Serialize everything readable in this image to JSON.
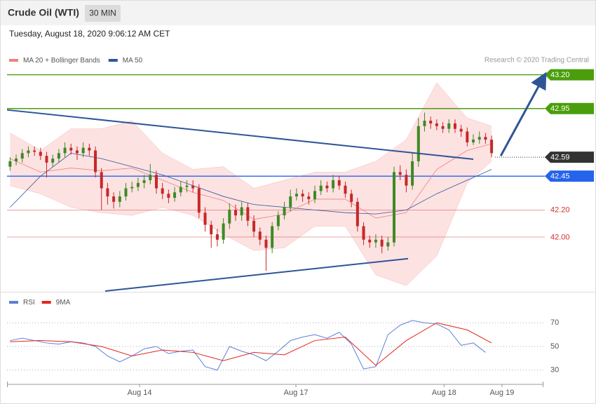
{
  "header": {
    "title": "Crude Oil (WTI)",
    "timeframe": "30 MIN",
    "date": "Tuesday, August 18, 2020 9:06:12 AM CET",
    "credit": "Research © 2020 Trading Central"
  },
  "chart_data": [
    {
      "type": "candlestick",
      "x": [
        0,
        1,
        2,
        3,
        4,
        5,
        6,
        7,
        8,
        9,
        10,
        11,
        12,
        13,
        14,
        15,
        16,
        17,
        18,
        19,
        20,
        21,
        22,
        23,
        24,
        25,
        26,
        27,
        28,
        29,
        30,
        31,
        32,
        33,
        34,
        35,
        36,
        37,
        38,
        39,
        40,
        41,
        42,
        43,
        44,
        45,
        46,
        47,
        48,
        49,
        50,
        51,
        52,
        53,
        54,
        55,
        56,
        57,
        58,
        59,
        60,
        61,
        62,
        63,
        64,
        65,
        66,
        67,
        68,
        69,
        70,
        71,
        72,
        73,
        74,
        75,
        76,
        77,
        78,
        79
      ],
      "open": [
        42.52,
        42.56,
        42.58,
        42.62,
        42.64,
        42.63,
        42.6,
        42.55,
        42.58,
        42.62,
        42.66,
        42.64,
        42.62,
        42.66,
        42.64,
        42.48,
        42.36,
        42.3,
        42.26,
        42.3,
        42.36,
        42.37,
        42.4,
        42.42,
        42.46,
        42.36,
        42.32,
        42.29,
        42.33,
        42.37,
        42.38,
        42.36,
        42.18,
        42.09,
        42.02,
        41.98,
        42.1,
        42.2,
        42.16,
        42.22,
        42.12,
        42.04,
        41.98,
        41.92,
        42.08,
        42.16,
        42.22,
        42.3,
        42.32,
        42.3,
        42.28,
        42.34,
        42.38,
        42.36,
        42.42,
        42.38,
        42.32,
        42.26,
        42.08,
        41.98,
        41.96,
        41.98,
        41.93,
        41.96,
        42.48,
        42.46,
        42.38,
        42.56,
        42.82,
        42.86,
        42.84,
        42.82,
        42.8,
        42.84,
        42.8,
        42.78,
        42.7,
        42.72,
        42.74,
        42.72
      ],
      "high": [
        42.59,
        42.61,
        42.65,
        42.67,
        42.67,
        42.66,
        42.63,
        42.61,
        42.65,
        42.7,
        42.69,
        42.67,
        42.7,
        42.69,
        42.67,
        42.51,
        42.4,
        42.33,
        42.34,
        42.4,
        42.41,
        42.44,
        42.46,
        42.54,
        42.49,
        42.4,
        42.35,
        42.37,
        42.41,
        42.42,
        42.42,
        42.39,
        42.22,
        42.12,
        42.06,
        42.14,
        42.25,
        42.24,
        42.26,
        42.25,
        42.16,
        42.07,
        42.01,
        42.11,
        42.19,
        42.26,
        42.35,
        42.36,
        42.35,
        42.33,
        42.38,
        42.42,
        42.41,
        42.46,
        42.45,
        42.41,
        42.35,
        42.29,
        42.11,
        42.01,
        42.02,
        42.01,
        42.0,
        42.52,
        42.53,
        42.5,
        42.62,
        42.88,
        42.92,
        42.89,
        42.87,
        42.85,
        42.87,
        42.87,
        42.83,
        42.81,
        42.76,
        42.78,
        42.77,
        42.75
      ],
      "low": [
        42.49,
        42.53,
        42.55,
        42.59,
        42.6,
        42.57,
        42.44,
        42.52,
        42.55,
        42.59,
        42.61,
        42.57,
        42.59,
        42.6,
        42.44,
        42.2,
        42.24,
        42.21,
        42.22,
        42.27,
        42.33,
        42.34,
        42.36,
        42.39,
        42.32,
        42.28,
        42.25,
        42.26,
        42.3,
        42.33,
        42.33,
        42.14,
        42.04,
        41.92,
        41.93,
        41.95,
        42.06,
        42.12,
        42.12,
        42.08,
        42.0,
        41.94,
        41.75,
        41.88,
        42.05,
        42.13,
        42.19,
        42.27,
        42.26,
        42.24,
        42.25,
        42.31,
        42.33,
        42.33,
        42.35,
        42.29,
        42.22,
        42.04,
        41.94,
        41.92,
        41.92,
        41.88,
        41.9,
        41.93,
        42.42,
        42.33,
        42.35,
        42.52,
        42.78,
        42.8,
        42.79,
        42.77,
        42.77,
        42.77,
        42.74,
        42.67,
        42.68,
        42.69,
        42.69,
        42.59
      ],
      "close": [
        42.56,
        42.58,
        42.62,
        42.64,
        42.63,
        42.6,
        42.55,
        42.58,
        42.62,
        42.66,
        42.64,
        42.62,
        42.66,
        42.64,
        42.48,
        42.36,
        42.3,
        42.26,
        42.3,
        42.36,
        42.37,
        42.4,
        42.42,
        42.46,
        42.36,
        42.32,
        42.29,
        42.33,
        42.37,
        42.38,
        42.36,
        42.18,
        42.09,
        42.02,
        41.98,
        42.1,
        42.2,
        42.16,
        42.22,
        42.12,
        42.04,
        41.98,
        41.92,
        42.08,
        42.16,
        42.22,
        42.3,
        42.32,
        42.3,
        42.28,
        42.34,
        42.38,
        42.36,
        42.42,
        42.38,
        42.32,
        42.26,
        42.08,
        41.98,
        41.96,
        41.98,
        41.93,
        41.96,
        42.48,
        42.46,
        42.38,
        42.56,
        42.82,
        42.86,
        42.84,
        42.82,
        42.8,
        42.84,
        42.8,
        42.78,
        42.7,
        42.72,
        42.74,
        42.72,
        42.62
      ],
      "up_color": "#3d8a24",
      "down_color": "#c62828",
      "series": [
        {
          "name": "MA 20 + Bollinger Bands",
          "color": "#f08080",
          "band_color": "#fde2e2",
          "x": [
            0,
            5,
            10,
            15,
            20,
            25,
            30,
            35,
            40,
            45,
            50,
            55,
            60,
            65,
            70,
            75,
            79
          ],
          "values": [
            42.58,
            42.48,
            42.51,
            42.49,
            42.51,
            42.42,
            42.33,
            42.27,
            42.13,
            42.17,
            42.28,
            42.28,
            42.14,
            42.18,
            42.5,
            42.64,
            42.69
          ],
          "upper": [
            42.77,
            42.64,
            42.8,
            42.8,
            42.86,
            42.62,
            42.5,
            42.52,
            42.36,
            42.42,
            42.48,
            42.48,
            42.56,
            42.72,
            43.14,
            42.88,
            42.82
          ],
          "lower": [
            42.38,
            42.32,
            42.22,
            42.18,
            42.16,
            42.22,
            42.16,
            42.02,
            41.9,
            41.92,
            42.08,
            42.08,
            41.72,
            41.64,
            41.86,
            42.4,
            42.56
          ]
        },
        {
          "name": "MA 50",
          "color": "#2f5597",
          "x": [
            0,
            5,
            10,
            15,
            20,
            25,
            30,
            35,
            40,
            45,
            50,
            55,
            60,
            65,
            70,
            75,
            79
          ],
          "values": [
            42.22,
            42.45,
            42.62,
            42.58,
            42.52,
            42.46,
            42.38,
            42.3,
            42.24,
            42.22,
            42.2,
            42.18,
            42.17,
            42.2,
            42.32,
            42.42,
            42.5
          ]
        }
      ],
      "trendlines": [
        {
          "x": [
            -0.5,
            76
          ],
          "y": [
            42.94,
            42.575
          ],
          "color": "#2f5597"
        },
        {
          "x": [
            15.6,
            65.3
          ],
          "y": [
            41.6,
            41.84
          ],
          "color": "#2f5597"
        }
      ],
      "arrow": {
        "x": [
          80.5,
          87.5
        ],
        "y": [
          42.6,
          43.18
        ],
        "color": "#2f5597"
      },
      "levels": [
        {
          "value": 43.2,
          "label": "43.20",
          "color": "#4a9e0c",
          "style": "box",
          "line": "solid"
        },
        {
          "value": 42.95,
          "label": "42.95",
          "color": "#4a9e0c",
          "style": "box",
          "line": "solid"
        },
        {
          "value": 42.59,
          "label": "42.59",
          "color": "#333333",
          "style": "box",
          "line": "dotted"
        },
        {
          "value": 42.45,
          "label": "42.45",
          "color": "#2563eb",
          "style": "box",
          "line": "solid"
        },
        {
          "value": 42.2,
          "label": "42.20",
          "color": "#d32f2f",
          "style": "text",
          "line": "thin"
        },
        {
          "value": 42,
          "label": "42.00",
          "color": "#d32f2f",
          "style": "text",
          "line": "thin"
        }
      ],
      "xlim": [
        -0.5,
        87.5
      ],
      "ylim": [
        41.6,
        43.26
      ]
    },
    {
      "type": "line",
      "series": [
        {
          "name": "RSI",
          "color": "#5b7fd6",
          "x": [
            0,
            2,
            4,
            6,
            8,
            10,
            12,
            14,
            16,
            18,
            20,
            22,
            24,
            26,
            28,
            30,
            32,
            34,
            36,
            38,
            40,
            42,
            44,
            46,
            48,
            50,
            52,
            54,
            56,
            58,
            60,
            62,
            64,
            66,
            68,
            70,
            72,
            74,
            76,
            78
          ],
          "values": [
            55,
            57,
            55,
            53,
            52,
            54,
            53,
            50,
            42,
            37,
            42,
            48,
            50,
            44,
            46,
            47,
            33,
            30,
            50,
            46,
            43,
            38,
            46,
            55,
            58,
            60,
            57,
            62,
            52,
            31,
            33,
            60,
            68,
            72,
            70,
            69,
            64,
            51,
            53,
            45
          ]
        },
        {
          "name": "9MA",
          "color": "#e3261c",
          "x": [
            0,
            5,
            10,
            15,
            20,
            25,
            30,
            35,
            40,
            45,
            50,
            55,
            60,
            65,
            70,
            75,
            79
          ],
          "values": [
            54,
            55,
            54,
            50,
            42,
            47,
            45,
            38,
            45,
            43,
            55,
            58,
            34,
            55,
            70,
            64,
            53
          ]
        }
      ],
      "xlim": [
        -0.5,
        87.5
      ],
      "ylim": [
        18,
        82
      ],
      "yticks": [
        30,
        50,
        70
      ],
      "xticks": [
        {
          "value": 21.25,
          "label": "Aug 14"
        },
        {
          "value": 46.9,
          "label": "Aug 17"
        },
        {
          "value": 71.2,
          "label": "Aug 18"
        },
        {
          "value": 80.7,
          "label": "Aug 19"
        }
      ]
    }
  ]
}
